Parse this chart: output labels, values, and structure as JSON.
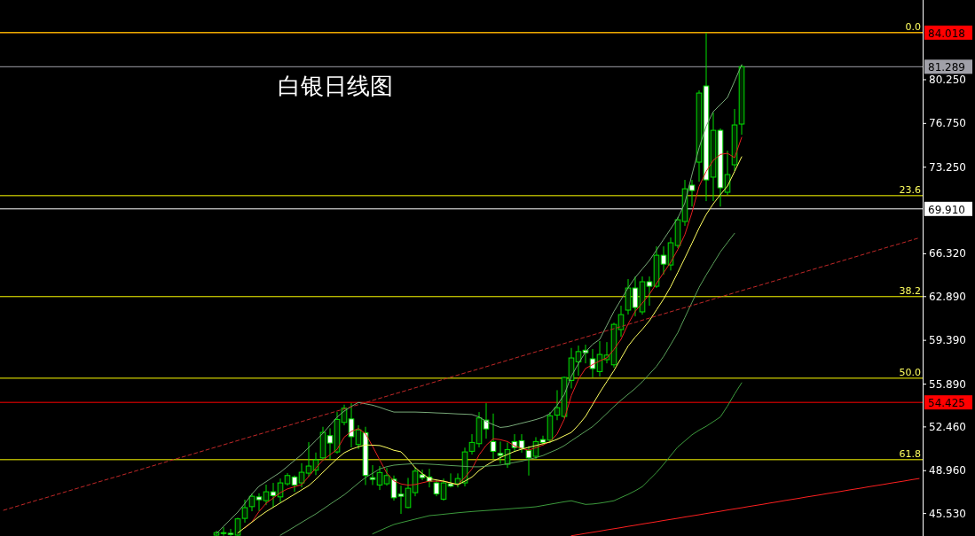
{
  "chart_data": {
    "type": "candlestick",
    "title": "白银日线图",
    "categories": [
      null,
      null,
      null,
      null,
      null,
      null,
      null,
      null,
      null,
      null,
      null,
      null,
      null,
      null,
      null,
      null,
      null,
      null,
      null,
      null,
      null,
      null,
      null,
      null,
      null,
      null,
      null,
      null,
      null,
      null,
      null,
      null,
      null,
      null,
      null,
      null,
      null,
      null,
      null,
      null,
      null,
      null,
      null,
      null,
      null,
      null,
      null,
      null,
      null,
      null,
      null,
      null,
      null,
      null,
      null,
      null,
      null,
      null,
      null,
      null,
      null,
      null,
      null,
      null,
      null,
      null,
      null,
      null,
      null,
      null,
      null,
      null,
      null,
      null,
      null,
      null,
      null,
      null,
      null,
      null,
      null,
      null,
      null,
      null,
      null,
      null,
      null,
      null,
      null,
      null,
      null,
      null,
      null,
      null,
      null,
      null,
      null,
      null,
      null,
      null,
      null,
      null,
      null,
      null,
      null,
      null,
      null,
      null,
      null,
      null,
      null,
      null,
      null,
      null,
      null,
      null,
      null,
      null,
      null,
      null,
      null,
      null,
      null,
      null,
      null,
      null,
      null,
      null,
      null,
      null
    ],
    "ohlc": [
      null,
      null,
      null,
      null,
      null,
      null,
      null,
      null,
      null,
      null,
      null,
      null,
      null,
      null,
      null,
      null,
      null,
      null,
      null,
      null,
      null,
      null,
      null,
      null,
      null,
      null,
      null,
      null,
      null,
      null,
      [
        43.8,
        44.15,
        43.75,
        44.0
      ],
      [
        44.0,
        44.43,
        43.75,
        43.95
      ],
      [
        43.95,
        44.3,
        43.75,
        43.85
      ],
      [
        43.8,
        45.2,
        43.75,
        45.1
      ],
      [
        45.14,
        46.63,
        44.8,
        46.0
      ],
      [
        46.08,
        47.13,
        45.71,
        46.91
      ],
      [
        46.86,
        47.15,
        45.73,
        46.63
      ],
      [
        46.56,
        47.84,
        46.2,
        47.27
      ],
      [
        47.27,
        47.98,
        46.0,
        46.96
      ],
      [
        46.86,
        48.33,
        46.44,
        47.98
      ],
      [
        47.91,
        48.76,
        47.76,
        48.57
      ],
      [
        48.45,
        48.57,
        47.27,
        47.81
      ],
      [
        47.98,
        49.56,
        47.62,
        48.83
      ],
      [
        48.76,
        51.24,
        48.47,
        49.33
      ],
      [
        49.0,
        50.41,
        48.6,
        49.82
      ],
      [
        49.98,
        52.47,
        49.75,
        52.02
      ],
      [
        51.76,
        52.35,
        49.89,
        51.17
      ],
      [
        50.46,
        53.65,
        50.32,
        53.06
      ],
      [
        52.82,
        54.24,
        52.59,
        53.96
      ],
      [
        53.1,
        54.36,
        50.82,
        51.68
      ],
      [
        51.05,
        52.59,
        50.69,
        52.23
      ],
      [
        52.0,
        52.47,
        47.81,
        48.57
      ],
      [
        48.4,
        49.4,
        47.81,
        48.26
      ],
      [
        47.81,
        49.33,
        47.41,
        48.81
      ],
      [
        47.91,
        49.18,
        47.76,
        48.57
      ],
      [
        48.28,
        48.57,
        46.56,
        46.79
      ],
      [
        47.08,
        47.76,
        45.5,
        46.91
      ],
      [
        46.01,
        48.38,
        45.95,
        47.55
      ],
      [
        47.2,
        49.23,
        46.91,
        48.92
      ],
      [
        48.63,
        49.04,
        48.19,
        48.4
      ],
      [
        48.45,
        49.11,
        47.62,
        48.1
      ],
      [
        47.98,
        48.21,
        46.91,
        47.1
      ],
      [
        46.68,
        48.33,
        46.56,
        47.98
      ],
      [
        47.91,
        48.74,
        47.62,
        47.72
      ],
      [
        47.91,
        48.74,
        47.62,
        48.33
      ],
      [
        47.98,
        50.8,
        47.7,
        50.46
      ],
      [
        50.51,
        51.88,
        50.25,
        51.22
      ],
      [
        51.12,
        53.65,
        50.82,
        53.18
      ],
      [
        53.01,
        54.36,
        51.52,
        52.3
      ],
      [
        51.29,
        53.53,
        49.89,
        50.51
      ],
      [
        50.34,
        51.29,
        49.52,
        50.18
      ],
      [
        49.47,
        51.22,
        49.18,
        50.65
      ],
      [
        51.29,
        51.88,
        50.46,
        50.81
      ],
      [
        51.36,
        51.88,
        50.4,
        50.74
      ],
      [
        50.58,
        50.93,
        48.57,
        49.98
      ],
      [
        50.11,
        51.64,
        49.89,
        51.29
      ],
      [
        51.45,
        51.76,
        50.96,
        51.22
      ],
      [
        51.4,
        53.65,
        51.17,
        53.35
      ],
      [
        53.4,
        55.4,
        53.0,
        54.0
      ],
      [
        53.3,
        56.49,
        53.18,
        56.42
      ],
      [
        56.18,
        58.78,
        55.54,
        57.98
      ],
      [
        57.67,
        58.97,
        56.56,
        58.49
      ],
      [
        58.6,
        59.04,
        57.55,
        58.4
      ],
      [
        57.91,
        58.69,
        56.42,
        57.13
      ],
      [
        56.89,
        59.33,
        56.49,
        58.26
      ],
      [
        57.84,
        59.25,
        57.55,
        58.21
      ],
      [
        57.43,
        60.8,
        57.2,
        60.67
      ],
      [
        60.25,
        62.16,
        59.68,
        61.45
      ],
      [
        61.81,
        64.29,
        61.45,
        63.58
      ],
      [
        63.58,
        64.5,
        61.31,
        62.02
      ],
      [
        61.67,
        64.5,
        61.45,
        64.08
      ],
      [
        64.08,
        64.5,
        62.16,
        63.72
      ],
      [
        63.72,
        66.91,
        63.58,
        66.2
      ],
      [
        66.2,
        66.91,
        64.65,
        65.49
      ],
      [
        65.42,
        67.62,
        64.98,
        67.2
      ],
      [
        66.98,
        69.25,
        66.77,
        69.04
      ],
      [
        68.9,
        72.23,
        68.55,
        71.52
      ],
      [
        71.81,
        72.23,
        70.1,
        71.38
      ],
      [
        73.65,
        79.4,
        72.09,
        79.18
      ],
      [
        79.75,
        84.0,
        70.53,
        72.23
      ],
      [
        72.45,
        77.62,
        70.53,
        76.2
      ],
      [
        76.2,
        76.35,
        70.1,
        71.6
      ],
      [
        71.24,
        74.57,
        71.02,
        72.66
      ],
      [
        73.44,
        77.91,
        72.94,
        76.63
      ],
      [
        76.7,
        81.45,
        75.85,
        81.29
      ],
      null,
      null,
      null,
      null,
      null,
      null,
      null,
      null,
      null,
      null,
      null,
      null,
      null,
      null,
      null,
      null,
      null,
      null,
      null,
      null,
      null,
      null,
      null,
      null,
      null
    ],
    "series": [
      {
        "type": "line",
        "color": "#e82020",
        "values": [
          null,
          null,
          null,
          null,
          null,
          null,
          null,
          null,
          null,
          null,
          null,
          null,
          null,
          null,
          null,
          null,
          null,
          null,
          null,
          null,
          null,
          null,
          null,
          null,
          null,
          null,
          null,
          null,
          null,
          null,
          null,
          null,
          null,
          null,
          44.36,
          44.86,
          45.69,
          46.35,
          46.77,
          47.2,
          47.5,
          47.67,
          47.84,
          48.5,
          49.16,
          49.8,
          50.23,
          50.67,
          51.64,
          52.1,
          52.33,
          51.92,
          50.9,
          49.82,
          48.76,
          48.14,
          47.9,
          47.8,
          47.85,
          47.99,
          48.12,
          48.12,
          48.12,
          47.98,
          47.84,
          48.41,
          49.1,
          50.22,
          50.99,
          51.52,
          51.44,
          51.29,
          50.95,
          50.73,
          50.6,
          50.8,
          51.02,
          51.28,
          51.9,
          53.07,
          54.97,
          56.27,
          57.14,
          57.45,
          57.74,
          57.99,
          58.66,
          59.47,
          60.7,
          61.71,
          62.37,
          63.08,
          63.95,
          64.8,
          65.64,
          66.66,
          67.86,
          69.64,
          71.71,
          72.91,
          73.8,
          74.27,
          74.36,
          74.01,
          75.64,
          null,
          null,
          null,
          null,
          null,
          null,
          null,
          null,
          null,
          null,
          null,
          null,
          null,
          null,
          null,
          null,
          null,
          null,
          null,
          null,
          null,
          null,
          null,
          null,
          null
        ]
      },
      {
        "type": "line",
        "color": "#ffff60",
        "values": [
          null,
          null,
          null,
          null,
          null,
          null,
          null,
          null,
          null,
          null,
          null,
          null,
          null,
          null,
          null,
          null,
          null,
          null,
          null,
          null,
          null,
          null,
          null,
          null,
          null,
          null,
          null,
          null,
          null,
          null,
          null,
          null,
          null,
          43.97,
          44.41,
          44.84,
          45.28,
          45.68,
          46.03,
          46.38,
          46.73,
          47.07,
          47.42,
          47.76,
          48.26,
          48.83,
          49.38,
          49.92,
          50.39,
          50.67,
          50.87,
          51.02,
          51.0,
          50.97,
          50.8,
          50.59,
          50.47,
          49.87,
          49.2,
          48.72,
          48.32,
          48.22,
          48.12,
          47.98,
          47.84,
          48.12,
          48.45,
          48.97,
          49.38,
          49.72,
          50.01,
          50.26,
          50.5,
          50.68,
          50.83,
          50.97,
          51.12,
          51.25,
          51.47,
          51.75,
          52.02,
          52.61,
          53.3,
          54.25,
          55.21,
          56.09,
          56.97,
          57.95,
          58.93,
          59.65,
          60.27,
          60.96,
          61.83,
          62.7,
          63.69,
          64.83,
          65.99,
          67.17,
          68.38,
          69.46,
          70.32,
          71.05,
          71.74,
          72.91,
          74.08,
          null,
          null,
          null,
          null,
          null,
          null,
          null,
          null,
          null,
          null,
          null,
          null,
          null,
          null,
          null,
          null,
          null,
          null,
          null,
          null,
          null,
          null,
          null,
          null,
          null
        ]
      },
      {
        "type": "line",
        "color": "#78a878",
        "values": [
          null,
          null,
          null,
          null,
          null,
          null,
          null,
          null,
          null,
          null,
          null,
          null,
          null,
          null,
          null,
          null,
          null,
          null,
          null,
          null,
          null,
          null,
          null,
          null,
          null,
          null,
          null,
          null,
          null,
          null,
          43.92,
          44.5,
          45.07,
          45.64,
          46.34,
          47.09,
          47.71,
          48.08,
          48.46,
          48.83,
          49.3,
          49.78,
          50.25,
          50.81,
          51.37,
          51.95,
          52.6,
          53.25,
          53.73,
          54.1,
          54.42,
          54.31,
          54.2,
          54.03,
          53.83,
          53.65,
          53.65,
          53.65,
          53.65,
          53.63,
          53.61,
          53.58,
          53.56,
          53.53,
          53.5,
          53.48,
          53.45,
          53.26,
          52.89,
          52.64,
          52.42,
          52.48,
          52.62,
          52.76,
          52.9,
          53.05,
          53.23,
          53.53,
          54.19,
          55.05,
          56.52,
          57.53,
          58.46,
          59.07,
          59.47,
          60.59,
          61.7,
          62.65,
          63.59,
          64.42,
          65.1,
          65.78,
          66.62,
          67.47,
          68.32,
          69.18,
          70.39,
          72.66,
          74.8,
          76.54,
          77.7,
          78.26,
          78.83,
          80.13,
          81.45,
          null,
          null,
          null,
          null,
          null,
          null,
          null,
          null,
          null,
          null,
          null,
          null,
          null,
          null,
          null,
          null,
          null,
          null,
          null,
          null,
          null,
          null,
          null,
          null,
          null
        ]
      },
      {
        "type": "line",
        "color": "#5aa05a",
        "values": [
          null,
          null,
          null,
          null,
          null,
          null,
          null,
          null,
          null,
          null,
          null,
          null,
          null,
          null,
          null,
          null,
          null,
          null,
          null,
          null,
          null,
          null,
          null,
          null,
          null,
          null,
          null,
          null,
          null,
          null,
          null,
          null,
          null,
          null,
          null,
          null,
          null,
          null,
          null,
          43.79,
          44.13,
          44.47,
          44.82,
          45.16,
          45.5,
          45.88,
          46.27,
          46.65,
          47.03,
          47.49,
          47.97,
          48.41,
          48.75,
          49.1,
          49.28,
          49.4,
          49.45,
          49.49,
          49.53,
          49.51,
          49.48,
          49.45,
          49.41,
          49.37,
          49.34,
          49.3,
          49.27,
          49.27,
          49.32,
          49.36,
          49.41,
          49.51,
          49.62,
          49.72,
          49.86,
          50.0,
          50.17,
          50.42,
          50.66,
          50.96,
          51.35,
          51.73,
          52.11,
          52.49,
          53.0,
          53.54,
          54.09,
          54.6,
          55.07,
          55.54,
          56.08,
          56.69,
          57.31,
          58.11,
          59.05,
          60.01,
          61.22,
          62.43,
          63.63,
          64.62,
          65.54,
          66.47,
          67.22,
          67.96,
          null,
          null,
          null,
          null,
          null,
          null,
          null,
          null,
          null,
          null,
          null,
          null,
          null,
          null,
          null,
          null,
          null,
          null,
          null,
          null,
          null,
          null,
          null,
          null,
          null,
          null
        ]
      },
      {
        "type": "line",
        "color": "#3c9a3c",
        "values": [
          null,
          null,
          null,
          null,
          null,
          null,
          null,
          null,
          null,
          null,
          null,
          null,
          null,
          null,
          null,
          null,
          null,
          null,
          null,
          null,
          null,
          null,
          null,
          null,
          null,
          null,
          null,
          null,
          null,
          null,
          null,
          null,
          null,
          null,
          null,
          null,
          null,
          null,
          null,
          null,
          null,
          null,
          null,
          null,
          null,
          null,
          null,
          null,
          null,
          null,
          null,
          null,
          43.9,
          44.16,
          44.41,
          44.65,
          44.8,
          44.94,
          45.08,
          45.22,
          45.36,
          45.41,
          45.47,
          45.53,
          45.59,
          45.64,
          45.69,
          45.73,
          45.77,
          45.81,
          45.85,
          45.89,
          45.94,
          45.98,
          46.02,
          46.07,
          46.17,
          46.27,
          46.37,
          46.47,
          46.55,
          46.4,
          46.26,
          46.29,
          46.36,
          46.45,
          46.55,
          46.81,
          47.06,
          47.35,
          47.68,
          48.24,
          48.81,
          49.47,
          50.17,
          50.86,
          51.34,
          51.83,
          52.2,
          52.51,
          52.88,
          53.26,
          54.13,
          55.1,
          55.99,
          null,
          null,
          null,
          null,
          null,
          null,
          null,
          null,
          null,
          null,
          null,
          null,
          null,
          null,
          null,
          null,
          null,
          null,
          null,
          null,
          null,
          null,
          null,
          null,
          null
        ]
      },
      {
        "type": "line",
        "color": "#c02828",
        "line_style": "dashed",
        "values": [
          45.79,
          45.96,
          46.13,
          46.3,
          46.47,
          46.64,
          46.8,
          46.97,
          47.14,
          47.31,
          47.48,
          47.65,
          47.82,
          47.99,
          48.16,
          48.33,
          48.49,
          48.66,
          48.83,
          49.0,
          49.17,
          49.34,
          49.51,
          49.68,
          49.85,
          50.02,
          50.18,
          50.35,
          50.52,
          50.69,
          50.86,
          51.03,
          51.2,
          51.37,
          51.54,
          51.71,
          51.87,
          52.04,
          52.21,
          52.38,
          52.55,
          52.72,
          52.89,
          53.06,
          53.23,
          53.4,
          53.56,
          53.73,
          53.9,
          54.07,
          54.24,
          54.41,
          54.58,
          54.75,
          54.92,
          55.09,
          55.25,
          55.42,
          55.59,
          55.76,
          55.93,
          56.1,
          56.27,
          56.44,
          56.61,
          56.78,
          56.94,
          57.11,
          57.28,
          57.45,
          57.62,
          57.79,
          57.96,
          58.13,
          58.3,
          58.47,
          58.63,
          58.8,
          58.97,
          59.14,
          59.31,
          59.48,
          59.65,
          59.82,
          59.99,
          60.16,
          60.32,
          60.49,
          60.66,
          60.83,
          61.0,
          61.17,
          61.34,
          61.51,
          61.68,
          61.85,
          62.01,
          62.18,
          62.35,
          62.52,
          62.69,
          62.86,
          63.03,
          63.2,
          63.37,
          63.54,
          63.7,
          63.87,
          64.04,
          64.21,
          64.38,
          64.55,
          64.72,
          64.89,
          65.06,
          65.23,
          65.39,
          65.56,
          65.73,
          65.9,
          66.07,
          66.24,
          66.41,
          66.58,
          66.75,
          66.92,
          67.08,
          67.25,
          67.42,
          67.59
        ]
      },
      {
        "type": "line",
        "color": "#ff2020",
        "values": [
          null,
          null,
          null,
          null,
          null,
          null,
          null,
          null,
          null,
          null,
          null,
          null,
          null,
          null,
          null,
          null,
          null,
          null,
          null,
          null,
          null,
          null,
          null,
          null,
          null,
          null,
          null,
          null,
          null,
          null,
          null,
          null,
          null,
          null,
          null,
          null,
          null,
          null,
          null,
          null,
          null,
          null,
          null,
          null,
          null,
          null,
          null,
          null,
          null,
          null,
          null,
          null,
          null,
          null,
          null,
          null,
          null,
          null,
          null,
          null,
          null,
          null,
          null,
          null,
          null,
          null,
          null,
          null,
          null,
          null,
          null,
          null,
          null,
          null,
          null,
          null,
          null,
          null,
          null,
          null,
          43.75,
          43.84,
          43.94,
          44.03,
          44.12,
          44.22,
          44.31,
          44.4,
          44.5,
          44.59,
          44.69,
          44.78,
          44.87,
          44.97,
          45.06,
          45.15,
          45.25,
          45.34,
          45.43,
          45.53,
          45.62,
          45.71,
          45.81,
          45.9,
          45.99,
          46.09,
          46.18,
          46.27,
          46.37,
          46.46,
          46.56,
          46.65,
          46.74,
          46.84,
          46.93,
          47.02,
          47.12,
          47.21,
          47.3,
          47.4,
          47.49,
          47.58,
          47.68,
          47.77,
          47.86,
          47.96,
          48.05,
          48.14,
          48.24,
          48.33
        ]
      }
    ],
    "ylim": [
      43.73,
      86.63
    ],
    "yticks": [
      {
        "value": 45.53,
        "label": "45.530"
      },
      {
        "value": 48.96,
        "label": "48.960"
      },
      {
        "value": 52.46,
        "label": "52.460"
      },
      {
        "value": 55.89,
        "label": "55.890"
      },
      {
        "value": 59.39,
        "label": "59.390"
      },
      {
        "value": 62.89,
        "label": "62.890"
      },
      {
        "value": 66.32,
        "label": "66.320"
      },
      {
        "value": 73.25,
        "label": "73.250"
      },
      {
        "value": 76.75,
        "label": "76.750"
      },
      {
        "value": 80.25,
        "label": "80.250"
      }
    ],
    "tick_labels": "y",
    "ref_lines": [
      {
        "axis": "y",
        "value": 84.018,
        "label": "84.018",
        "color": "#ff0000"
      },
      {
        "axis": "y",
        "value": 84.018,
        "color": "#ffff00"
      },
      {
        "axis": "y",
        "value": 81.289,
        "label": "81.289",
        "color": "#a0a0a8"
      },
      {
        "axis": "y",
        "value": 69.91,
        "label": "69.910",
        "color": "#ffffff"
      },
      {
        "axis": "y",
        "value": 54.425,
        "label": "54.425",
        "color": "#ff0000"
      },
      {
        "axis": "y",
        "value": 70.97,
        "color": "#ffff00"
      },
      {
        "axis": "y",
        "value": 62.89,
        "color": "#ffff00"
      },
      {
        "axis": "y",
        "value": 56.36,
        "color": "#ffff00"
      },
      {
        "axis": "y",
        "value": 49.84,
        "color": "#ffff00"
      }
    ],
    "annotations": [
      {
        "text": "0.0",
        "y": 84.018
      },
      {
        "text": "23.6",
        "y": 70.97
      },
      {
        "text": "38.2",
        "y": 62.89
      },
      {
        "text": "50.0",
        "y": 56.36
      },
      {
        "text": "61.8",
        "y": 49.84
      }
    ]
  }
}
